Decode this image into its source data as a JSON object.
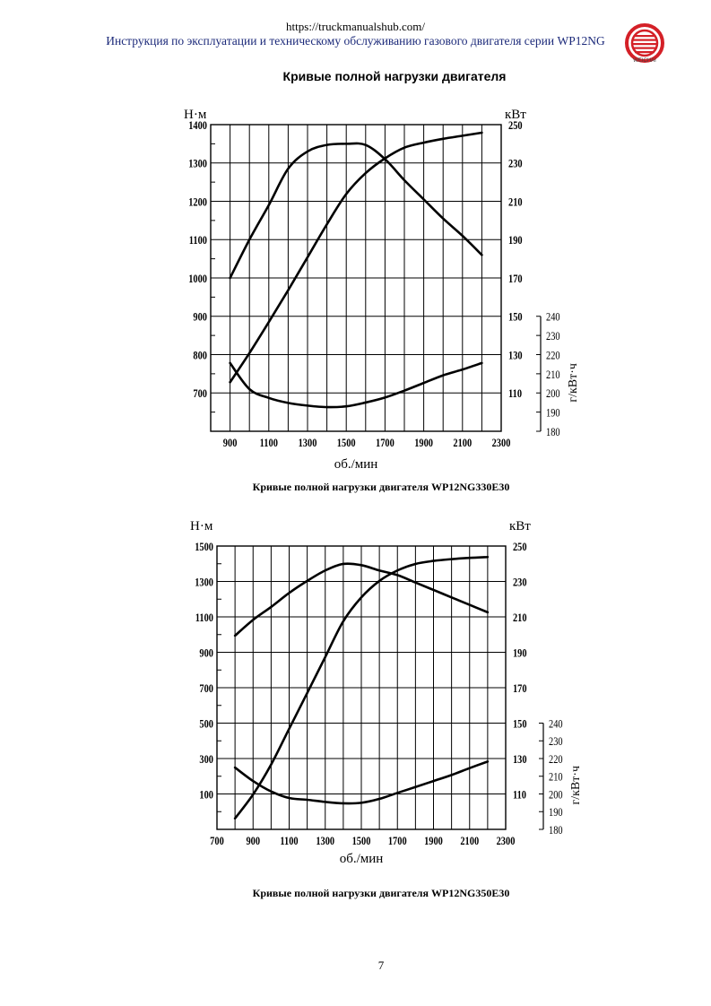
{
  "header": {
    "url": "https://truckmanualshub.com/",
    "subtitle": "Инструкция по эксплуатации и техническому обслуживанию газового двигателя серии WP12NG",
    "logo_text": "WEICHAI",
    "logo_color": "#d42027"
  },
  "page_title": "Кривые полной нагрузки двигателя",
  "page_number": "7",
  "chart_data": [
    {
      "type": "line",
      "caption": "Кривые полной нагрузки двигателя WP12NG330E30",
      "xlabel": "об./мин",
      "ylabel_left": "Н·м",
      "ylabel_right": "кВт",
      "ylabel_bsfc": "г/кВт·ч",
      "xlim": [
        800,
        2300
      ],
      "xticks": [
        900,
        1100,
        1300,
        1500,
        1700,
        1900,
        2100,
        2300
      ],
      "ylim_torque": [
        600,
        1400
      ],
      "yticks_torque": [
        1400,
        1300,
        1200,
        1100,
        1000,
        900,
        800,
        700
      ],
      "ylim_power": [
        90,
        250
      ],
      "yticks_power": [
        250,
        230,
        210,
        190,
        170,
        150,
        130,
        110
      ],
      "ylim_bsfc": [
        180,
        240
      ],
      "yticks_bsfc": [
        240,
        230,
        220,
        210,
        200,
        190,
        180
      ],
      "grid": true,
      "x": [
        900,
        1000,
        1100,
        1200,
        1300,
        1400,
        1500,
        1600,
        1700,
        1800,
        1900,
        2000,
        2100,
        2200
      ],
      "series": [
        {
          "name": "torque",
          "axis": "torque",
          "values": [
            1000,
            1100,
            1190,
            1285,
            1330,
            1347,
            1350,
            1347,
            1310,
            1255,
            1205,
            1155,
            1110,
            1060
          ]
        },
        {
          "name": "power",
          "axis": "power",
          "values": [
            115.6,
            130.8,
            147,
            163.6,
            180.8,
            198,
            213.8,
            224.7,
            232.4,
            238,
            240.6,
            242.6,
            244.2,
            245.8
          ]
        },
        {
          "name": "bsfc",
          "axis": "bsfc",
          "values": [
            215.6,
            202,
            197.4,
            194.8,
            193.4,
            192.6,
            193,
            195,
            197.6,
            201.2,
            205.2,
            209.2,
            212.2,
            215.6
          ]
        }
      ]
    },
    {
      "type": "line",
      "caption": "Кривые полной нагрузки двигателя WP12NG350E30",
      "xlabel": "об./мин",
      "ylabel_left": "Н·м",
      "ylabel_right": "кВт",
      "ylabel_bsfc": "г/кВт·ч",
      "xlim": [
        700,
        2300
      ],
      "xticks": [
        700,
        900,
        1100,
        1300,
        1500,
        1700,
        1900,
        2100,
        2300
      ],
      "ylim_torque": [
        -100,
        1500
      ],
      "yticks_torque": [
        1500,
        1300,
        1100,
        900,
        700,
        500,
        300,
        100
      ],
      "ylim_power": [
        90,
        250
      ],
      "yticks_power": [
        250,
        230,
        210,
        190,
        170,
        150,
        130,
        110
      ],
      "ylim_bsfc": [
        180,
        240
      ],
      "yticks_bsfc": [
        240,
        230,
        220,
        210,
        200,
        190,
        180
      ],
      "grid": true,
      "x": [
        800,
        900,
        1000,
        1100,
        1200,
        1300,
        1400,
        1500,
        1600,
        1700,
        1800,
        1900,
        2000,
        2100,
        2200
      ],
      "series": [
        {
          "name": "torque",
          "axis": "torque",
          "values": [
            994,
            1083,
            1156,
            1235,
            1303,
            1362,
            1399,
            1392,
            1362,
            1336,
            1294,
            1252,
            1210,
            1168,
            1126
          ]
        },
        {
          "name": "power",
          "axis": "power",
          "values": [
            96.2,
            109.7,
            126.6,
            146.8,
            167,
            187.3,
            207.5,
            221,
            230.3,
            236.2,
            239.9,
            241.6,
            242.6,
            243.3,
            243.8
          ]
        },
        {
          "name": "bsfc",
          "axis": "bsfc",
          "values": [
            214.9,
            207.3,
            201.4,
            197.7,
            196.7,
            195.5,
            194.7,
            195,
            197.2,
            200.6,
            203.9,
            207.3,
            210.7,
            214.6,
            218.3
          ]
        }
      ]
    }
  ]
}
